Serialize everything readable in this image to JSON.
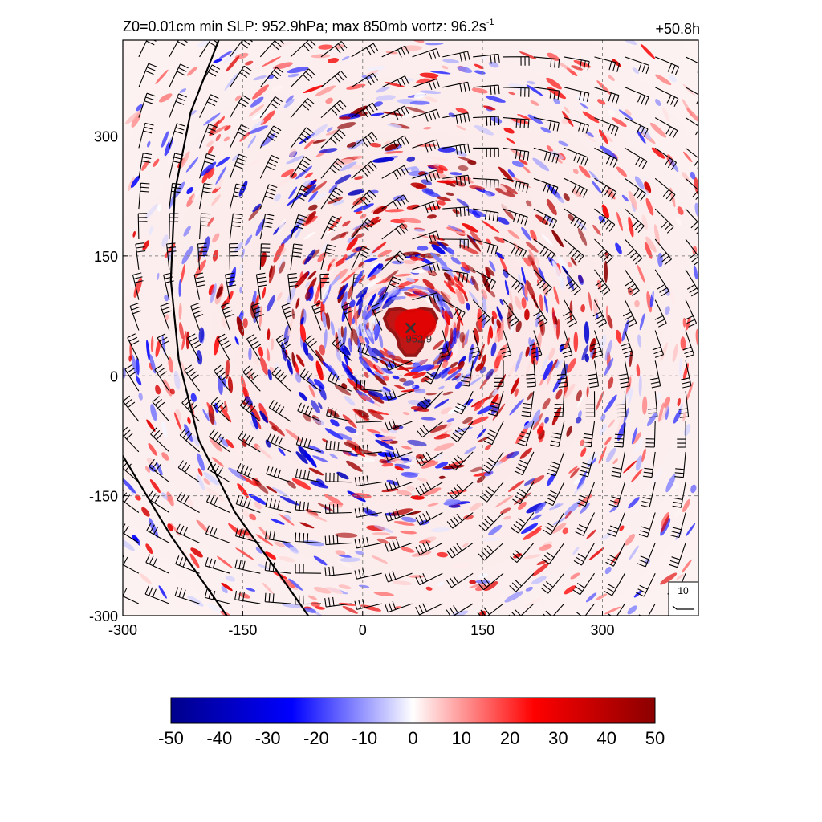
{
  "header": {
    "title_prefix": "Z0=0.01cm  min SLP: 952.9hPa; max 850mb vortz:  96.2s",
    "title_exponent": "-1",
    "time": "+50.8h"
  },
  "chart_data": {
    "type": "heatmap",
    "title": "Z0=0.01cm  min SLP: 952.9hPa; max 850mb vortz:  96.2s-1",
    "xlabel": "",
    "ylabel": "",
    "xlim": [
      -300,
      420
    ],
    "ylim": [
      -300,
      420
    ],
    "x_ticks": [
      -300,
      -150,
      0,
      150,
      300
    ],
    "y_ticks": [
      -300,
      -150,
      0,
      150,
      300
    ],
    "x_tick_labels": [
      "-300",
      "-150",
      "0",
      "150",
      "300"
    ],
    "y_tick_labels": [
      "-300",
      "-150",
      "0",
      "150",
      "300"
    ],
    "grid": true,
    "colorbar": {
      "min": -50,
      "max": 50,
      "ticks": [
        -50,
        -40,
        -30,
        -20,
        -10,
        0,
        10,
        20,
        30,
        40,
        50
      ],
      "tick_labels": [
        "-50",
        "-40",
        "-30",
        "-20",
        "-10",
        "0",
        "10",
        "20",
        "30",
        "40",
        "50"
      ],
      "colors": [
        "#00008b",
        "#0000ff",
        "#ffffff",
        "#ff0000",
        "#8b0000"
      ]
    },
    "center_marker": {
      "x": 60,
      "y": 60,
      "label": "952.9"
    },
    "eye_vorticity_peak": 96.2,
    "wind_barb_reference": {
      "label": "10"
    },
    "coastlines": [
      [
        [
          -180,
          420
        ],
        [
          -215,
          330
        ],
        [
          -235,
          230
        ],
        [
          -240,
          120
        ],
        [
          -230,
          20
        ],
        [
          -205,
          -80
        ],
        [
          -160,
          -170
        ],
        [
          -110,
          -240
        ],
        [
          -68,
          -300
        ]
      ],
      [
        [
          -300,
          -100
        ],
        [
          -270,
          -150
        ],
        [
          -240,
          -200
        ],
        [
          -205,
          -250
        ],
        [
          -170,
          -300
        ]
      ]
    ]
  }
}
